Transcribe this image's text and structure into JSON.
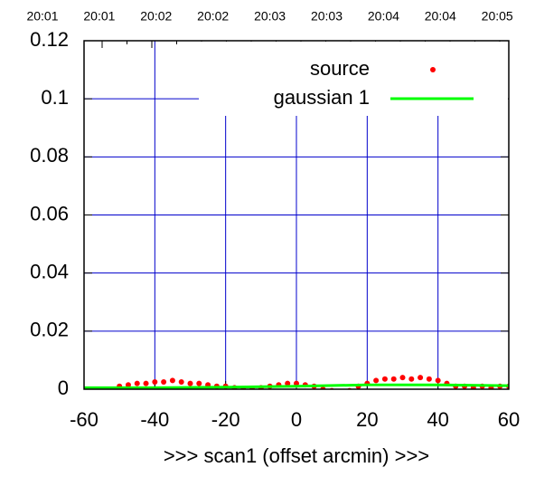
{
  "chart_data": {
    "type": "scatter",
    "xlabel": ">>> scan1 (offset arcmin) >>>",
    "top_axis_labels": [
      "20:01",
      "20:01",
      "20:02",
      "20:02",
      "20:03",
      "20:03",
      "20:04",
      "20:04",
      "20:05"
    ],
    "xlim": [
      -60,
      60
    ],
    "xticks": [
      -60,
      -40,
      -20,
      0,
      20,
      40,
      60
    ],
    "ylim": [
      0,
      0.12
    ],
    "yticks": [
      0,
      0.02,
      0.04,
      0.06,
      0.08,
      0.1,
      0.12
    ],
    "grid": true,
    "legend": "upper right",
    "series": [
      {
        "name": "source",
        "color": "#ff0000",
        "mode": "points",
        "x": [
          -50,
          -47.5,
          -45,
          -42.5,
          -40,
          -37.5,
          -35,
          -32.5,
          -30,
          -27.5,
          -25,
          -22.5,
          -20,
          -17.5,
          -15,
          -12.5,
          -10,
          -7.5,
          -5,
          -2.5,
          0,
          2.5,
          5,
          7.5,
          10,
          12.5,
          15,
          17.5,
          20,
          22.5,
          25,
          27.5,
          30,
          32.5,
          35,
          37.5,
          40,
          42.5,
          45,
          47.5,
          50,
          52.5,
          55,
          57.5,
          60
        ],
        "values": [
          0.001,
          0.0015,
          0.002,
          0.002,
          0.0025,
          0.0025,
          0.003,
          0.0025,
          0.002,
          0.002,
          0.0015,
          0.001,
          0.001,
          0.0005,
          0,
          0,
          0.0005,
          0.001,
          0.0015,
          0.002,
          0.002,
          0.0015,
          0.001,
          0,
          -0.0005,
          -0.001,
          -0.0005,
          0.001,
          0.002,
          0.003,
          0.0035,
          0.0035,
          0.004,
          0.0035,
          0.004,
          0.0035,
          0.003,
          0.002,
          0.001,
          0.001,
          0.0005,
          0.001,
          0.0005,
          0.001,
          0.001
        ]
      },
      {
        "name": "gaussian 1",
        "color": "#00ff00",
        "mode": "line",
        "x": [
          -60,
          -40,
          -20,
          0,
          20,
          40,
          60
        ],
        "values": [
          0.0005,
          0.0005,
          0.0007,
          0.001,
          0.0015,
          0.0015,
          0.0012
        ]
      }
    ]
  }
}
